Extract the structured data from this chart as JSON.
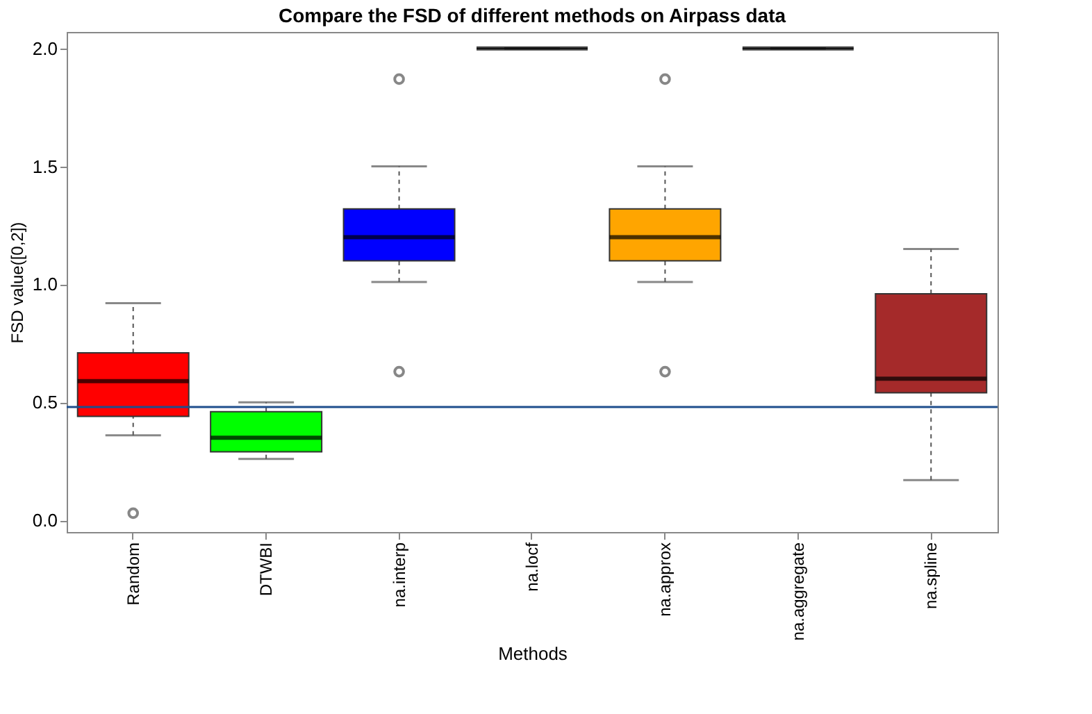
{
  "chart_data": {
    "type": "box",
    "title": "Compare the FSD of different methods on Airpass data",
    "xlabel": "Methods",
    "ylabel": "FSD value([0,2])",
    "categories": [
      "Random",
      "DTWBI",
      "na.interp",
      "na.locf",
      "na.approx",
      "na.aggregate",
      "na.spline"
    ],
    "colors": [
      "#ff0000",
      "#00ff00",
      "#0000ff",
      "#000000",
      "#ffa500",
      "#000000",
      "#a52a2a"
    ],
    "boxes": [
      {
        "low": 0.36,
        "q1": 0.44,
        "median": 0.59,
        "q3": 0.71,
        "high": 0.92,
        "outliers": [
          0.03
        ]
      },
      {
        "low": 0.26,
        "q1": 0.29,
        "median": 0.35,
        "q3": 0.46,
        "high": 0.5
      },
      {
        "low": 1.01,
        "q1": 1.1,
        "median": 1.2,
        "q3": 1.32,
        "high": 1.5,
        "outliers": [
          0.63,
          1.87
        ]
      },
      {
        "low": 2.0,
        "q1": 2.0,
        "median": 2.0,
        "q3": 2.0,
        "high": 2.0
      },
      {
        "low": 1.01,
        "q1": 1.1,
        "median": 1.2,
        "q3": 1.32,
        "high": 1.5,
        "outliers": [
          0.63,
          1.87
        ]
      },
      {
        "low": 2.0,
        "q1": 2.0,
        "median": 2.0,
        "q3": 2.0,
        "high": 2.0
      },
      {
        "low": 0.17,
        "q1": 0.54,
        "median": 0.6,
        "q3": 0.96,
        "high": 1.15
      }
    ],
    "ylim": [
      -0.05,
      2.07
    ],
    "yticks": [
      {
        "value": 0,
        "label": "0.0"
      },
      {
        "value": 0.5,
        "label": "0.5"
      },
      {
        "value": 1,
        "label": "1.0"
      },
      {
        "value": 1.5,
        "label": "1.5"
      },
      {
        "value": 2,
        "label": "2.0"
      }
    ],
    "ref_lines": [
      {
        "axis": "y",
        "value": 0.48,
        "color": "#1f4e8c"
      }
    ],
    "grid": false
  }
}
